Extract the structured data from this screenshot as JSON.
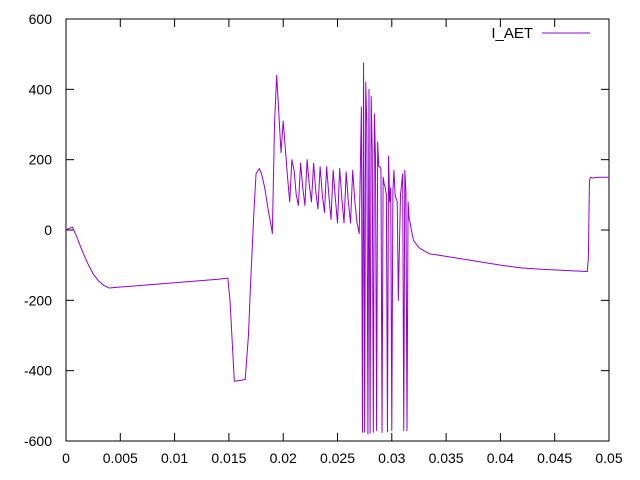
{
  "chart_data": {
    "type": "line",
    "title": "",
    "xlabel": "",
    "ylabel": "",
    "xlim": [
      0,
      0.05
    ],
    "ylim": [
      -600,
      600
    ],
    "grid": false,
    "legend_position": "top-right",
    "x_ticks": [
      {
        "value": 0,
        "label": "0"
      },
      {
        "value": 0.005,
        "label": "0.005"
      },
      {
        "value": 0.01,
        "label": "0.01"
      },
      {
        "value": 0.015,
        "label": "0.015"
      },
      {
        "value": 0.02,
        "label": "0.02"
      },
      {
        "value": 0.025,
        "label": "0.025"
      },
      {
        "value": 0.03,
        "label": "0.03"
      },
      {
        "value": 0.035,
        "label": "0.035"
      },
      {
        "value": 0.04,
        "label": "0.04"
      },
      {
        "value": 0.045,
        "label": "0.045"
      },
      {
        "value": 0.05,
        "label": "0.05"
      }
    ],
    "y_ticks": [
      {
        "value": -600,
        "label": "-600"
      },
      {
        "value": -400,
        "label": "-400"
      },
      {
        "value": -200,
        "label": "-200"
      },
      {
        "value": 0,
        "label": "0"
      },
      {
        "value": 200,
        "label": "200"
      },
      {
        "value": 400,
        "label": "400"
      },
      {
        "value": 600,
        "label": "600"
      }
    ],
    "series": [
      {
        "name": "I_AET",
        "color": "#9400d3",
        "x": [
          0,
          0.0003,
          0.0006,
          0.001,
          0.0015,
          0.002,
          0.0025,
          0.003,
          0.0035,
          0.004,
          0.005,
          0.006,
          0.008,
          0.01,
          0.012,
          0.014,
          0.0149,
          0.0151,
          0.0155,
          0.016,
          0.0165,
          0.0168,
          0.017,
          0.0173,
          0.0175,
          0.0178,
          0.018,
          0.0183,
          0.0186,
          0.0189,
          0.019,
          0.0192,
          0.0194,
          0.0196,
          0.0198,
          0.02,
          0.0202,
          0.0204,
          0.0206,
          0.0208,
          0.021,
          0.0212,
          0.0214,
          0.0216,
          0.0218,
          0.022,
          0.0222,
          0.0224,
          0.0226,
          0.0228,
          0.023,
          0.0232,
          0.0234,
          0.0236,
          0.0238,
          0.024,
          0.0242,
          0.0244,
          0.0246,
          0.0248,
          0.025,
          0.0252,
          0.0254,
          0.0256,
          0.0258,
          0.026,
          0.0262,
          0.0264,
          0.0266,
          0.0268,
          0.027,
          0.0272,
          0.0273,
          0.0274,
          0.0275,
          0.0276,
          0.0277,
          0.0278,
          0.0279,
          0.028,
          0.0281,
          0.0282,
          0.0283,
          0.0284,
          0.0285,
          0.0286,
          0.0287,
          0.0288,
          0.0289,
          0.029,
          0.0291,
          0.0292,
          0.0293,
          0.0294,
          0.0295,
          0.0296,
          0.0297,
          0.0298,
          0.0299,
          0.03,
          0.0301,
          0.0302,
          0.0303,
          0.0304,
          0.0305,
          0.0306,
          0.0308,
          0.031,
          0.0311,
          0.0312,
          0.0313,
          0.0314,
          0.0315,
          0.0316,
          0.0317,
          0.0318,
          0.032,
          0.0325,
          0.033,
          0.0335,
          0.034,
          0.036,
          0.038,
          0.04,
          0.042,
          0.044,
          0.046,
          0.048,
          0.0481,
          0.0482,
          0.0483,
          0.0485,
          0.049,
          0.05
        ],
        "y": [
          0,
          5,
          8,
          -20,
          -60,
          -95,
          -125,
          -145,
          -158,
          -165,
          -162,
          -160,
          -155,
          -150,
          -145,
          -140,
          -137,
          -200,
          -430,
          -428,
          -425,
          -300,
          -150,
          50,
          160,
          175,
          160,
          120,
          60,
          10,
          -10,
          300,
          440,
          330,
          220,
          310,
          230,
          150,
          80,
          200,
          170,
          100,
          70,
          190,
          120,
          70,
          200,
          130,
          80,
          190,
          110,
          60,
          180,
          100,
          50,
          180,
          100,
          30,
          170,
          90,
          20,
          175,
          90,
          20,
          165,
          80,
          20,
          170,
          80,
          20,
          -10,
          350,
          -575,
          475,
          -575,
          420,
          300,
          -580,
          400,
          -578,
          380,
          220,
          -575,
          330,
          200,
          -570,
          250,
          180,
          180,
          175,
          -576,
          150,
          130,
          120,
          100,
          -574,
          210,
          80,
          120,
          -570,
          110,
          170,
          100,
          90,
          80,
          -200,
          100,
          160,
          -570,
          170,
          110,
          -570,
          80,
          30,
          20,
          0,
          -30,
          -50,
          -60,
          -68,
          -70,
          -80,
          -90,
          -100,
          -108,
          -112,
          -115,
          -118,
          -80,
          140,
          150,
          148,
          150,
          150
        ]
      }
    ]
  }
}
